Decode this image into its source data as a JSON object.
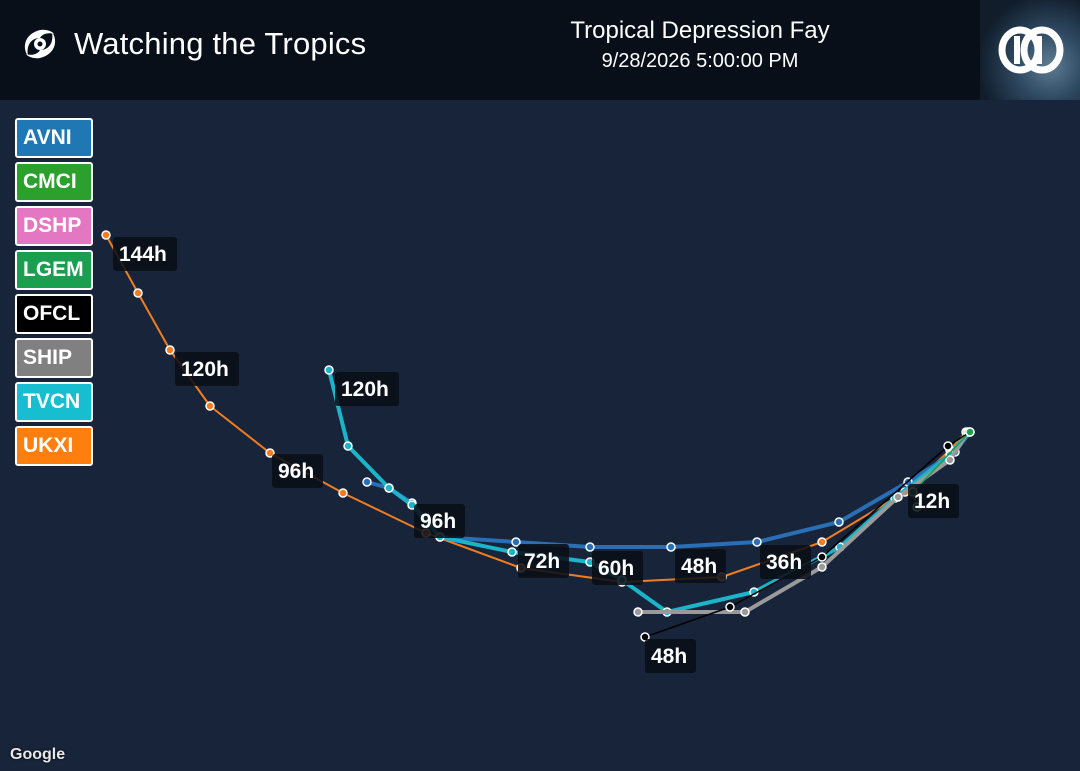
{
  "header": {
    "app_title": "Watching the Tropics",
    "storm_name": "Tropical Depression Fay",
    "datetime": "9/28/2026 5:00:00 PM",
    "brand_icon": "hurricane-icon",
    "logo_icon": "dd-logo-icon"
  },
  "legend": {
    "items": [
      {
        "label": "AVNI",
        "color": "#1f77b4"
      },
      {
        "label": "CMCI",
        "color": "#2ca02c"
      },
      {
        "label": "DSHP",
        "color": "#e377c2"
      },
      {
        "label": "LGEM",
        "color": "#1a9e50"
      },
      {
        "label": "OFCL",
        "color": "#000000"
      },
      {
        "label": "SHIP",
        "color": "#808080"
      },
      {
        "label": "TVCN",
        "color": "#17becf"
      },
      {
        "label": "UKXI",
        "color": "#ff7f0e"
      }
    ]
  },
  "attribution": "Google",
  "tracks": [
    {
      "model": "UKXI",
      "color": "#f27d20",
      "width": 2
    },
    {
      "model": "AVNI",
      "color": "#2a6fb5",
      "width": 4
    },
    {
      "model": "TVCN",
      "color": "#1bb4c8",
      "width": 4
    },
    {
      "model": "SHIP",
      "color": "#9a9a9a",
      "width": 4
    },
    {
      "model": "OFCL",
      "color": "#000000",
      "width": 1.5
    },
    {
      "model": "LGEM",
      "color": "#1a9e50",
      "width": 1.5
    }
  ],
  "hour_labels": [
    "144h",
    "120h",
    "120h",
    "96h",
    "96h",
    "72h",
    "60h",
    "48h",
    "48h",
    "36h",
    "12h"
  ]
}
